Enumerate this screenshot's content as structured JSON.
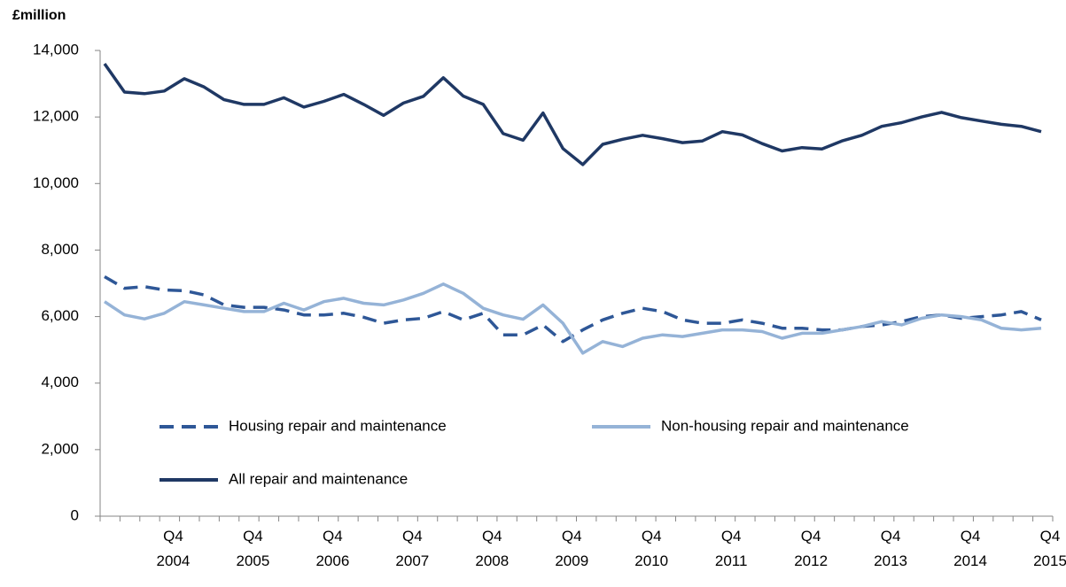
{
  "chart_data": {
    "type": "line",
    "y_label": "£million",
    "categories": [
      null,
      null,
      null,
      "Q4 2004",
      null,
      null,
      null,
      "Q4 2005",
      null,
      null,
      null,
      "Q4 2006",
      null,
      null,
      null,
      "Q4 2007",
      null,
      null,
      null,
      "Q4 2008",
      null,
      null,
      null,
      "Q4 2009",
      null,
      null,
      null,
      "Q4 2010",
      null,
      null,
      null,
      "Q4 2011",
      null,
      null,
      null,
      "Q4 2012",
      null,
      null,
      null,
      "Q4 2013",
      null,
      null,
      null,
      "Q4 2014",
      null,
      null,
      null,
      "Q4 2015"
    ],
    "ylim": [
      0,
      14000
    ],
    "yticks": [
      0,
      {
        "value": 2000,
        "label": "2,000"
      },
      {
        "value": 4000,
        "label": "4,000"
      },
      {
        "value": 6000,
        "label": "6,000"
      },
      {
        "value": 8000,
        "label": "8,000"
      },
      {
        "value": 10000,
        "label": "10,000"
      },
      {
        "value": 12000,
        "label": "12,000"
      },
      {
        "value": 14000,
        "label": "14,000"
      }
    ],
    "series": [
      {
        "name": "Housing repair and maintenance",
        "color": "#2e5797",
        "dashed": true,
        "values": [
          7200,
          6850,
          6900,
          6800,
          6780,
          6650,
          6350,
          6280,
          6280,
          6200,
          6050,
          6050,
          6100,
          5980,
          5800,
          5900,
          5950,
          6150,
          5900,
          6100,
          5450,
          5450,
          5750,
          5250,
          5600,
          5900,
          6100,
          6250,
          6150,
          5900,
          5800,
          5800,
          5900,
          5800,
          5650,
          5650,
          5600,
          5600,
          5700,
          5750,
          5850,
          6000,
          6050,
          5950,
          6000,
          6050,
          6150,
          5900
        ]
      },
      {
        "name": "Non-housing repair and maintenance",
        "color": "#95b3d7",
        "dashed": false,
        "values": [
          6450,
          6050,
          5930,
          6100,
          6450,
          6350,
          6250,
          6150,
          6150,
          6400,
          6200,
          6450,
          6550,
          6400,
          6350,
          6500,
          6700,
          6980,
          6700,
          6250,
          6050,
          5920,
          6350,
          5800,
          4900,
          5250,
          5100,
          5350,
          5450,
          5400,
          5500,
          5600,
          5600,
          5550,
          5350,
          5500,
          5500,
          5600,
          5700,
          5850,
          5750,
          5950,
          6050,
          6000,
          5900,
          5650,
          5600,
          5650
        ]
      },
      {
        "name": "All repair and maintenance",
        "color": "#1f3864",
        "dashed": false,
        "values": [
          13600,
          12750,
          12700,
          12780,
          13150,
          12900,
          12520,
          12380,
          12380,
          12580,
          12300,
          12470,
          12680,
          12380,
          12050,
          12420,
          12620,
          13180,
          12630,
          12380,
          11500,
          11300,
          12120,
          11050,
          10570,
          11180,
          11330,
          11450,
          11350,
          11230,
          11280,
          11560,
          11460,
          11200,
          10980,
          11080,
          11040,
          11280,
          11450,
          11720,
          11830,
          12000,
          12140,
          11980,
          11880,
          11780,
          11720,
          11560
        ]
      }
    ]
  }
}
